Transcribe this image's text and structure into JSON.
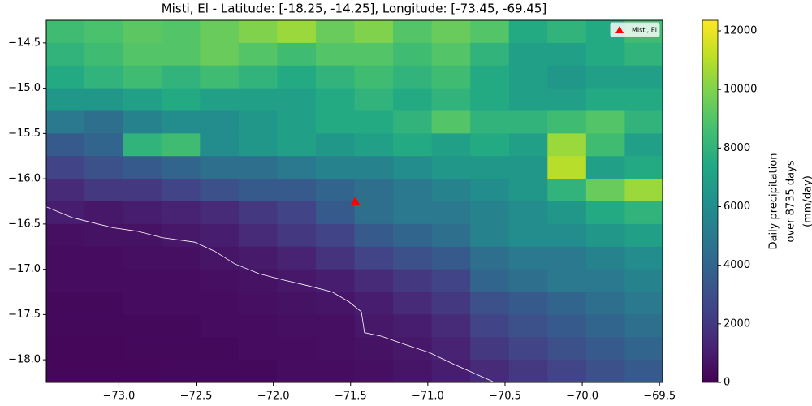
{
  "chart_data": {
    "type": "heatmap",
    "title": "Misti, El - Latitude: [-18.25, -14.25], Longitude: [-73.45, -69.45]",
    "x": [
      -73.35,
      -73.1,
      -72.85,
      -72.6,
      -72.35,
      -72.1,
      -71.85,
      -71.6,
      -71.35,
      -71.1,
      -70.85,
      -70.6,
      -70.35,
      -70.1,
      -69.85,
      -69.6
    ],
    "y": [
      -14.375,
      -14.625,
      -14.875,
      -15.125,
      -15.375,
      -15.625,
      -15.875,
      -16.125,
      -16.375,
      -16.625,
      -16.875,
      -17.125,
      -17.375,
      -17.625,
      -17.875,
      -18.125
    ],
    "values": [
      [
        8500,
        8800,
        9200,
        9000,
        9500,
        10000,
        10500,
        9500,
        10000,
        9000,
        9500,
        9000,
        7500,
        8000,
        7500,
        8500
      ],
      [
        8000,
        8500,
        9000,
        9000,
        9500,
        9000,
        8500,
        9000,
        9000,
        8500,
        9000,
        8000,
        7000,
        7000,
        7500,
        8000
      ],
      [
        7500,
        8000,
        8500,
        8000,
        8500,
        8000,
        7500,
        8000,
        8500,
        8000,
        8500,
        7500,
        7000,
        6500,
        7000,
        7000
      ],
      [
        6500,
        6500,
        7000,
        7500,
        7000,
        7000,
        7000,
        7500,
        8000,
        7500,
        8000,
        7500,
        7000,
        7000,
        7500,
        7500
      ],
      [
        5000,
        4500,
        5500,
        6000,
        6000,
        6500,
        7000,
        7500,
        7500,
        8000,
        9000,
        8000,
        8000,
        8500,
        9000,
        8000
      ],
      [
        3500,
        4000,
        8000,
        8500,
        6000,
        6500,
        7000,
        6500,
        7000,
        7500,
        7000,
        7500,
        7000,
        10500,
        8500,
        7000
      ],
      [
        2500,
        3000,
        3500,
        4000,
        4500,
        4500,
        5000,
        5500,
        5500,
        6000,
        6500,
        6500,
        6500,
        11000,
        7000,
        7500
      ],
      [
        1500,
        2000,
        2000,
        2500,
        3000,
        3500,
        3500,
        4000,
        4500,
        5000,
        5500,
        6000,
        6500,
        8000,
        9500,
        10500
      ],
      [
        1000,
        800,
        1000,
        1200,
        1500,
        2000,
        2500,
        3500,
        4500,
        5000,
        5000,
        5500,
        6000,
        6500,
        7500,
        8000
      ],
      [
        500,
        600,
        600,
        800,
        1000,
        1500,
        2000,
        2500,
        3500,
        4000,
        4500,
        5500,
        6000,
        6000,
        6500,
        7000
      ],
      [
        400,
        400,
        500,
        500,
        700,
        900,
        1200,
        1800,
        2500,
        3000,
        3500,
        4500,
        5000,
        5000,
        5500,
        6000
      ],
      [
        400,
        400,
        400,
        400,
        500,
        600,
        800,
        1000,
        1500,
        2000,
        2500,
        4000,
        4500,
        5000,
        5000,
        5500
      ],
      [
        300,
        300,
        400,
        400,
        400,
        500,
        600,
        700,
        1000,
        1500,
        2000,
        3000,
        3500,
        4000,
        4500,
        5000
      ],
      [
        300,
        300,
        300,
        300,
        400,
        400,
        500,
        500,
        800,
        1000,
        1500,
        2500,
        3000,
        3500,
        4000,
        4500
      ],
      [
        200,
        200,
        300,
        300,
        300,
        400,
        400,
        500,
        600,
        800,
        1200,
        2000,
        2500,
        3000,
        3500,
        4000
      ],
      [
        200,
        200,
        200,
        300,
        300,
        300,
        400,
        400,
        500,
        700,
        1000,
        1500,
        2000,
        2500,
        3000,
        3500
      ]
    ],
    "xlim": [
      -73.47,
      -69.48
    ],
    "ylim": [
      -18.25,
      -14.25
    ],
    "xticks": [
      {
        "value": -73.0,
        "label": "−73.0"
      },
      {
        "value": -72.5,
        "label": "−72.5"
      },
      {
        "value": -72.0,
        "label": "−72.0"
      },
      {
        "value": -71.5,
        "label": "−71.5"
      },
      {
        "value": -71.0,
        "label": "−71.0"
      },
      {
        "value": -70.5,
        "label": "−70.5"
      },
      {
        "value": -70.0,
        "label": "−70.0"
      },
      {
        "value": -69.5,
        "label": "−69.5"
      }
    ],
    "yticks": [
      {
        "value": -14.5,
        "label": "−14.5"
      },
      {
        "value": -15.0,
        "label": "−15.0"
      },
      {
        "value": -15.5,
        "label": "−15.5"
      },
      {
        "value": -16.0,
        "label": "−16.0"
      },
      {
        "value": -16.5,
        "label": "−16.5"
      },
      {
        "value": -17.0,
        "label": "−17.0"
      },
      {
        "value": -17.5,
        "label": "−17.5"
      },
      {
        "value": -18.0,
        "label": "−18.0"
      }
    ],
    "colormap": "viridis",
    "clim": [
      0,
      12360
    ],
    "cbar_ticks": [
      0,
      2000,
      4000,
      6000,
      8000,
      10000,
      12000
    ],
    "colorbar_label": [
      "Daily precipitation",
      "over 8735 days",
      "(mm/day)"
    ],
    "marker": {
      "name": "Misti, El",
      "lon": -71.47,
      "lat": -16.25,
      "color": "#ff0000"
    },
    "legend": "upper right",
    "coastline": {
      "color": "#ffffff",
      "lon": [
        -73.47,
        -73.3,
        -73.04,
        -72.88,
        -72.72,
        -72.51,
        -72.38,
        -72.25,
        -72.09,
        -71.93,
        -71.78,
        -71.62,
        -71.51,
        -71.43,
        -71.41,
        -71.3,
        -71.15,
        -70.99,
        -70.83,
        -70.58
      ],
      "lat": [
        -16.31,
        -16.43,
        -16.54,
        -16.58,
        -16.65,
        -16.7,
        -16.8,
        -16.94,
        -17.05,
        -17.12,
        -17.18,
        -17.25,
        -17.36,
        -17.47,
        -17.7,
        -17.74,
        -17.83,
        -17.92,
        -18.05,
        -18.24
      ]
    }
  }
}
